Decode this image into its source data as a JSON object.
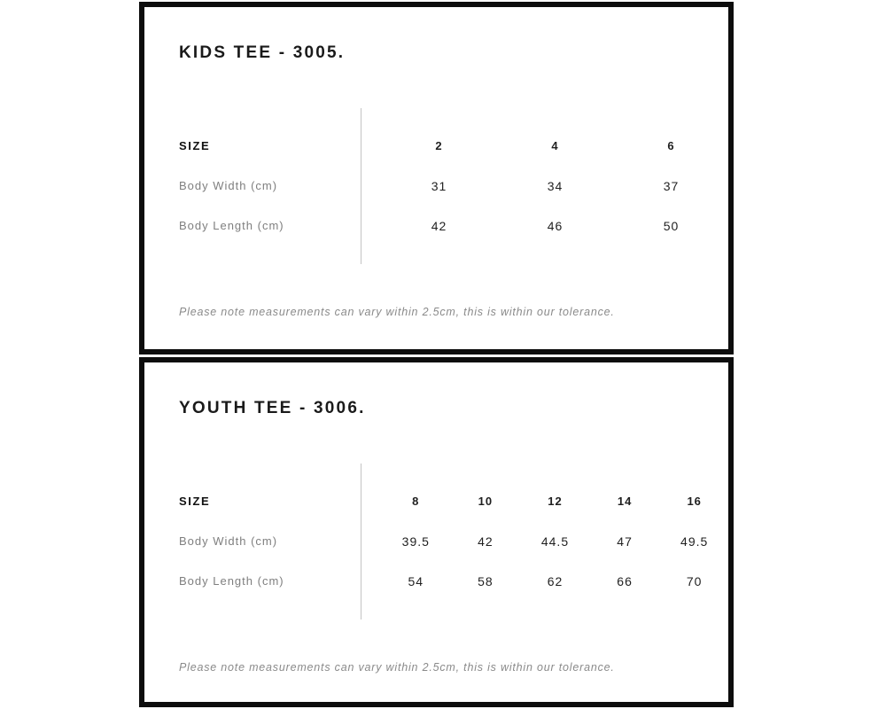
{
  "panels": [
    {
      "title": "KIDS TEE - 3005.",
      "table": {
        "size_label": "SIZE",
        "sizes": [
          "2",
          "4",
          "6"
        ],
        "rows": [
          {
            "label": "Body Width (cm)",
            "values": [
              "31",
              "34",
              "37"
            ]
          },
          {
            "label": "Body Length (cm)",
            "values": [
              "42",
              "46",
              "50"
            ]
          }
        ]
      },
      "note": "Please note measurements can vary within 2.5cm, this is within our tolerance."
    },
    {
      "title": "YOUTH TEE - 3006.",
      "table": {
        "size_label": "SIZE",
        "sizes": [
          "8",
          "10",
          "12",
          "14",
          "16"
        ],
        "rows": [
          {
            "label": "Body Width (cm)",
            "values": [
              "39.5",
              "42",
              "44.5",
              "47",
              "49.5"
            ]
          },
          {
            "label": "Body Length (cm)",
            "values": [
              "54",
              "58",
              "62",
              "66",
              "70"
            ]
          }
        ]
      },
      "note": "Please note measurements can vary within 2.5cm, this is within our tolerance."
    }
  ],
  "colors": {
    "background": "#ffffff",
    "panel_border": "#0d0d0d",
    "title_text": "#1a1a1a",
    "header_text": "#111111",
    "label_text": "#7f7f7f",
    "value_text": "#1f1f1f",
    "note_text": "#8a8a8a",
    "divider": "#c4c4c4"
  }
}
